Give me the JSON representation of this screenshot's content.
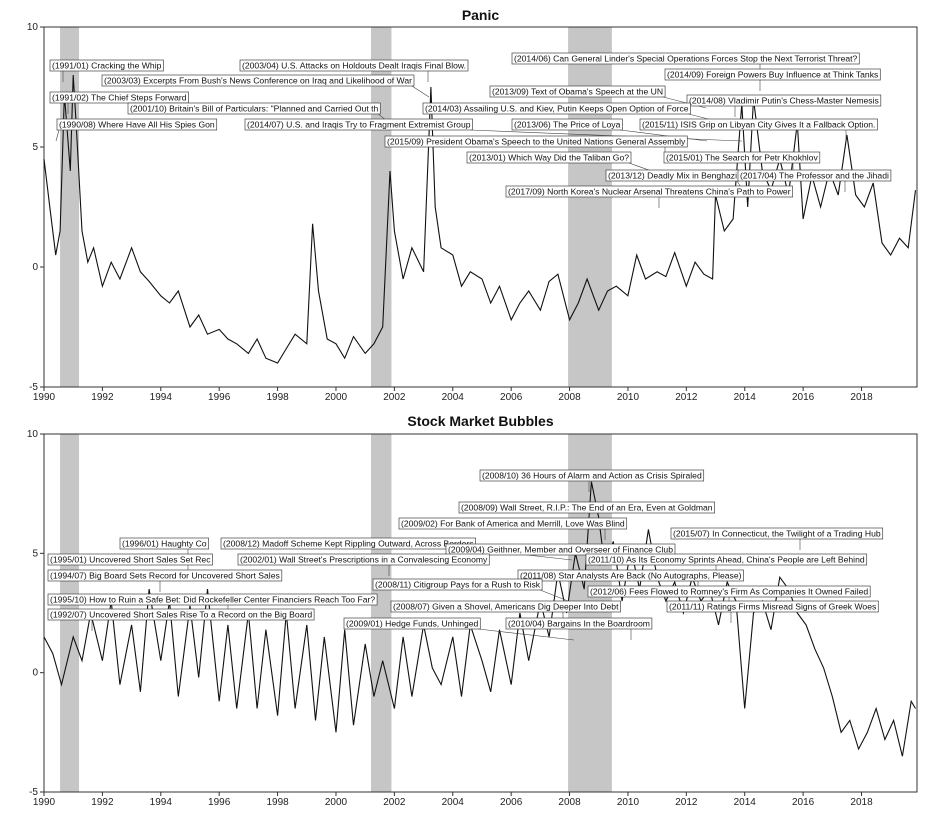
{
  "chart_data": [
    {
      "type": "line",
      "title": "Panic",
      "xlabel": "",
      "ylabel": "",
      "xlim": [
        1990,
        2019.9
      ],
      "ylim": [
        -5,
        10
      ],
      "xticks": [
        "1990",
        "1992",
        "1994",
        "1996",
        "1998",
        "2000",
        "2002",
        "2004",
        "2006",
        "2008",
        "2010",
        "2012",
        "2014",
        "2016",
        "2018"
      ],
      "yticks": [
        "-5",
        "0",
        "5",
        "10"
      ],
      "recessions": [
        [
          1990.55,
          1991.2
        ],
        [
          2001.2,
          2001.9
        ],
        [
          2007.95,
          2009.45
        ]
      ],
      "series": [
        {
          "x": [
            1990.0,
            1990.2,
            1990.4,
            1990.55,
            1990.7,
            1990.9,
            1991.0,
            1991.1,
            1991.3,
            1991.5,
            1991.7,
            1992.0,
            1992.3,
            1992.6,
            1993.0,
            1993.3,
            1993.6,
            1994.0,
            1994.3,
            1994.6,
            1995.0,
            1995.3,
            1995.6,
            1996.0,
            1996.3,
            1996.6,
            1997.0,
            1997.3,
            1997.6,
            1998.0,
            1998.3,
            1998.6,
            1999.0,
            1999.2,
            1999.4,
            1999.7,
            2000.0,
            2000.3,
            2000.6,
            2001.0,
            2001.3,
            2001.6,
            2001.85,
            2002.0,
            2002.3,
            2002.6,
            2003.0,
            2003.25,
            2003.4,
            2003.6,
            2004.0,
            2004.3,
            2004.6,
            2005.0,
            2005.3,
            2005.6,
            2006.0,
            2006.3,
            2006.6,
            2007.0,
            2007.3,
            2007.6,
            2008.0,
            2008.3,
            2008.6,
            2009.0,
            2009.3,
            2009.6,
            2010.0,
            2010.3,
            2010.6,
            2011.0,
            2011.3,
            2011.6,
            2012.0,
            2012.3,
            2012.6,
            2012.9,
            2013.0,
            2013.3,
            2013.6,
            2013.9,
            2014.1,
            2014.3,
            2014.6,
            2014.9,
            2015.2,
            2015.5,
            2015.8,
            2016.0,
            2016.3,
            2016.6,
            2016.9,
            2017.2,
            2017.5,
            2017.8,
            2018.1,
            2018.4,
            2018.7,
            2019.0,
            2019.3,
            2019.6,
            2019.85
          ],
          "y": [
            4.5,
            2.5,
            0.5,
            1.5,
            7.2,
            4.0,
            8.0,
            6.0,
            1.5,
            0.2,
            0.8,
            -0.8,
            0.2,
            -0.5,
            0.8,
            -0.2,
            -0.6,
            -1.2,
            -1.5,
            -1.0,
            -2.5,
            -2.0,
            -2.8,
            -2.6,
            -3.0,
            -3.2,
            -3.6,
            -3.0,
            -3.8,
            -4.0,
            -3.4,
            -2.8,
            -3.2,
            1.8,
            -1.0,
            -3.0,
            -3.2,
            -3.8,
            -2.9,
            -3.6,
            -3.2,
            -2.5,
            4.0,
            1.5,
            -0.5,
            0.8,
            -0.2,
            7.5,
            2.5,
            0.8,
            0.5,
            -0.8,
            -0.2,
            -0.5,
            -1.5,
            -0.8,
            -2.2,
            -1.5,
            -1.0,
            -1.8,
            -0.6,
            -0.3,
            -2.2,
            -1.5,
            -0.5,
            -1.8,
            -1.0,
            -0.8,
            -1.2,
            0.5,
            -0.5,
            -0.2,
            -0.4,
            0.6,
            -0.8,
            0.2,
            -0.3,
            -0.5,
            3.0,
            1.5,
            2.0,
            6.8,
            2.5,
            7.0,
            4.0,
            3.2,
            4.5,
            3.0,
            6.0,
            2.0,
            3.8,
            2.5,
            4.0,
            3.0,
            5.5,
            3.0,
            2.5,
            3.5,
            1.0,
            0.5,
            1.2,
            0.8,
            3.2
          ]
        }
      ],
      "annotations": [
        "(1991/01) Cracking the Whip",
        "(2003/04) U.S. Attacks on Holdouts Dealt Iraqis Final Blow.",
        "(2014/06) Can General Linder's Special Operations Forces Stop the Next Terrorist Threat?",
        "(2014/09) Foreign Powers Buy Influence at Think Tanks",
        "(2003/03) Excerpts From Bush's News Conference on Iraq and Likelihood of War",
        "(2013/09) Text of Obama's Speech at the UN",
        "(1991/02) The Chief Steps Forward",
        "(2014/08) Vladimir Putin's Chess-Master Nemesis",
        "(2001/10) Britain's Bill of Particulars: \"Planned and Carried Out th",
        "(2014/03) Assailing U.S. and Kiev, Putin Keeps Open Option of Force",
        "(1990/08) Where Have All His Spies Gon",
        "(2014/07) U.S. and Iraqis Try to Fragment Extremist Group",
        "(2013/06) The Price of Loya",
        "(2015/11) ISIS Grip on Libyan City Gives It a Fallback Option.",
        "(2015/09) President Obama's Speech to the United Nations General Assembly",
        "(2013/01) Which Way Did the Taliban Go?",
        "(2015/01) The Search for Petr Khokhlov",
        "(2013/12) Deadly Mix in Benghazi",
        "(2017/04) The Professor and the Jihadi",
        "(2017/09) North Korea's Nuclear Arsenal Threatens China's Path to Power"
      ]
    },
    {
      "type": "line",
      "title": "Stock Market Bubbles",
      "xlabel": "",
      "ylabel": "",
      "xlim": [
        1990,
        2019.9
      ],
      "ylim": [
        -5,
        10
      ],
      "xticks": [
        "1990",
        "1992",
        "1994",
        "1996",
        "1998",
        "2000",
        "2002",
        "2004",
        "2006",
        "2008",
        "2010",
        "2012",
        "2014",
        "2016",
        "2018"
      ],
      "yticks": [
        "-5",
        "0",
        "5",
        "10"
      ],
      "recessions": [
        [
          1990.55,
          1991.2
        ],
        [
          2001.2,
          2001.9
        ],
        [
          2007.95,
          2009.45
        ]
      ],
      "series": [
        {
          "x": [
            1990.0,
            1990.3,
            1990.6,
            1991.0,
            1991.3,
            1991.6,
            1992.0,
            1992.3,
            1992.6,
            1993.0,
            1993.3,
            1993.6,
            1994.0,
            1994.3,
            1994.6,
            1995.0,
            1995.3,
            1995.6,
            1996.0,
            1996.3,
            1996.6,
            1997.0,
            1997.3,
            1997.6,
            1998.0,
            1998.3,
            1998.6,
            1999.0,
            1999.3,
            1999.6,
            2000.0,
            2000.3,
            2000.6,
            2001.0,
            2001.3,
            2001.6,
            2002.0,
            2002.3,
            2002.6,
            2003.0,
            2003.3,
            2003.6,
            2004.0,
            2004.3,
            2004.6,
            2005.0,
            2005.3,
            2005.6,
            2006.0,
            2006.3,
            2006.6,
            2007.0,
            2007.3,
            2007.6,
            2007.9,
            2008.2,
            2008.5,
            2008.75,
            2009.0,
            2009.2,
            2009.5,
            2009.8,
            2010.1,
            2010.4,
            2010.7,
            2011.0,
            2011.3,
            2011.6,
            2011.9,
            2012.2,
            2012.5,
            2012.8,
            2013.1,
            2013.4,
            2013.7,
            2014.0,
            2014.3,
            2014.6,
            2014.9,
            2015.2,
            2015.5,
            2015.8,
            2016.1,
            2016.4,
            2016.7,
            2017.0,
            2017.3,
            2017.6,
            2017.9,
            2018.2,
            2018.5,
            2018.8,
            2019.1,
            2019.4,
            2019.7,
            2019.85
          ],
          "y": [
            1.5,
            0.8,
            -0.5,
            1.5,
            0.5,
            2.5,
            0.5,
            3.0,
            -0.5,
            2.0,
            -0.8,
            3.5,
            0.5,
            3.0,
            -1.0,
            2.8,
            -0.2,
            3.5,
            -1.2,
            2.0,
            -1.5,
            2.5,
            -1.5,
            1.8,
            -1.8,
            2.5,
            -1.5,
            2.0,
            -2.0,
            1.5,
            -2.5,
            1.8,
            -2.2,
            1.2,
            -1.0,
            0.5,
            -1.5,
            1.5,
            -1.0,
            2.0,
            0.2,
            -0.5,
            1.5,
            -1.0,
            2.0,
            0.5,
            -0.8,
            1.8,
            -0.5,
            2.5,
            0.5,
            3.0,
            1.5,
            4.2,
            2.5,
            5.0,
            3.5,
            8.0,
            6.5,
            4.5,
            5.5,
            3.0,
            5.2,
            3.5,
            6.0,
            4.0,
            3.0,
            3.8,
            2.5,
            4.0,
            3.0,
            3.5,
            2.0,
            3.8,
            3.0,
            -1.5,
            2.5,
            3.0,
            1.8,
            4.0,
            3.5,
            2.5,
            2.0,
            1.0,
            0.2,
            -1.0,
            -2.5,
            -2.0,
            -3.2,
            -2.5,
            -1.5,
            -2.8,
            -2.0,
            -3.5,
            -1.2,
            -1.5
          ]
        }
      ],
      "annotations": [
        "(2008/10) 36 Hours of Alarm and Action as Crisis Spiraled",
        "(2008/09) Wall Street, R.I.P.: The End of an Era, Even at Goldman",
        "(2009/02) For Bank of America and Merrill, Love Was Blind",
        "(2015/07) In Connecticut, the Twilight of a Trading Hub",
        "(1996/01) Haughty Co",
        "(2008/12) Madoff Scheme Kept Rippling Outward, Across Borders",
        "(2009/04) Geithner, Member and Overseer of Finance Club",
        "(1995/01) Uncovered Short Sales Set Rec",
        "(2002/01) Wall Street's Prescriptions in a Convalescing Economy",
        "(2011/10) As Its Economy Sprints Ahead, China's People are Left Behind",
        "(1994/07) Big Board Sets Record for Uncovered Short Sales",
        "(2011/08) Star Analysts Are Back (No Autographs, Please)",
        "(2008/11) Citigroup Pays for a Rush to Risk",
        "(2012/06) Fees Flowed to Romney's Firm As Companies It Owned Failed",
        "(1995/10) How to Ruin a Safe Bet: Did Rockefeller Center Financiers Reach Too Far?",
        "(2008/07) Given a Shovel, Americans Dig Deeper Into Debt",
        "(2011/11) Ratings Firms Misread Signs of Greek Woes",
        "(1992/07) Uncovered Short Sales Rise To a Record on the Big Board",
        "(2009/01) Hedge Funds, Unhinged",
        "(2010/04) Bargains In the Boardroom"
      ]
    }
  ]
}
